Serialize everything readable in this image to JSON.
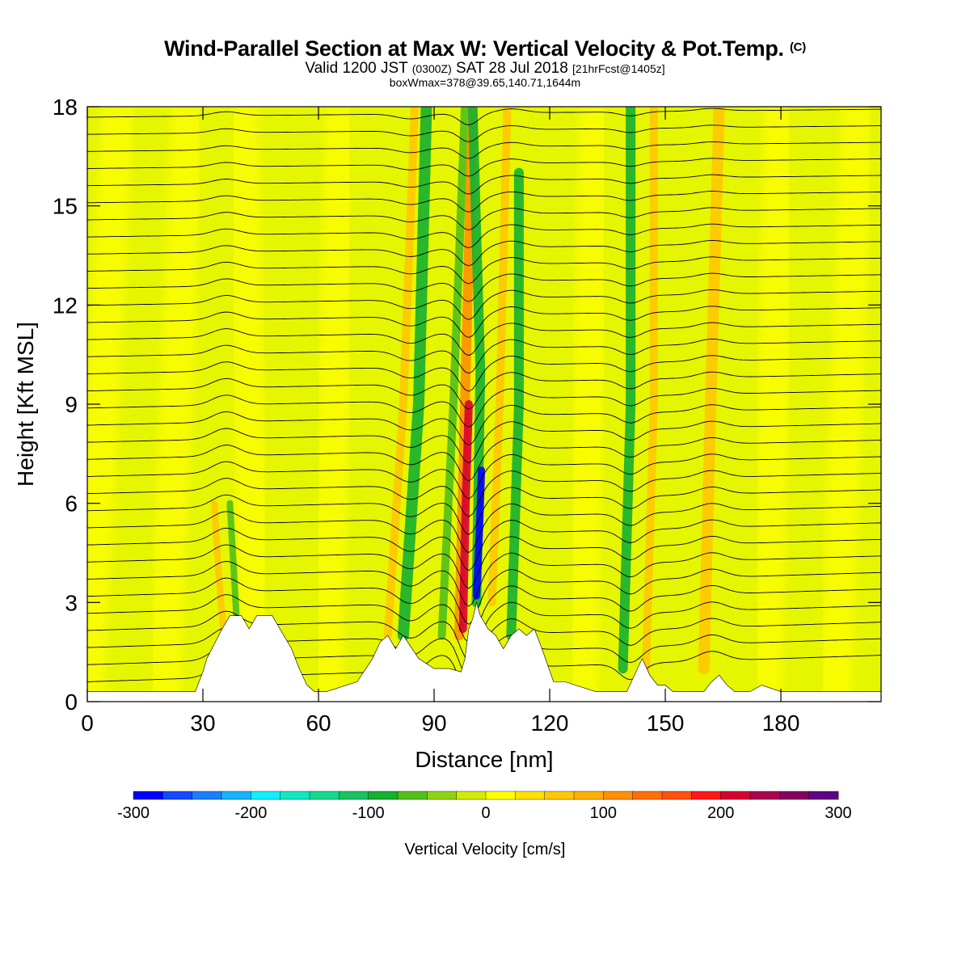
{
  "header": {
    "title": "Wind-Parallel Section at Max W: Vertical Velocity & Pot.Temp.",
    "copyright": "(C)",
    "subtitle_main": "Valid 1200 JST",
    "subtitle_utc": "(0300Z)",
    "subtitle_date": "SAT 28 Jul 2018",
    "subtitle_fcst": "[21hrFcst@1405z]",
    "box_line": "boxWmax=378@39.65,140.71,1644m"
  },
  "chart_data": {
    "type": "heatmap",
    "xlabel": "Distance [nm]",
    "ylabel": "Height [Kft MSL]",
    "xlim": [
      0,
      206
    ],
    "ylim": [
      0,
      18
    ],
    "x_ticks": [
      "0",
      "30",
      "60",
      "90",
      "120",
      "150",
      "180"
    ],
    "y_ticks": [
      "0",
      "3",
      "6",
      "9",
      "12",
      "15",
      "18"
    ],
    "colorbar": {
      "label": "Vertical Velocity [cm/s]",
      "range": [
        -300,
        300
      ],
      "tick_labels": [
        "-300",
        "-200",
        "-100",
        "0",
        "100",
        "200",
        "300"
      ],
      "colors": [
        "#0000ff",
        "#1448ff",
        "#1a7eff",
        "#14b4ff",
        "#10f0ff",
        "#10e8c0",
        "#14d890",
        "#18c460",
        "#14b030",
        "#50c018",
        "#8ed510",
        "#d2ec00",
        "#ffff00",
        "#ffe000",
        "#ffc800",
        "#ffb000",
        "#ff9000",
        "#ff7000",
        "#ff5010",
        "#ff1818",
        "#d80030",
        "#b00050",
        "#880060",
        "#600088"
      ]
    },
    "terrain_kft": [
      [
        0,
        0.3
      ],
      [
        28,
        0.3
      ],
      [
        29,
        0.6
      ],
      [
        30,
        0.9
      ],
      [
        31,
        1.3
      ],
      [
        35,
        2.2
      ],
      [
        37,
        2.6
      ],
      [
        40,
        2.6
      ],
      [
        42,
        2.2
      ],
      [
        44,
        2.6
      ],
      [
        48,
        2.6
      ],
      [
        50,
        2.2
      ],
      [
        53,
        1.6
      ],
      [
        55,
        1.0
      ],
      [
        57,
        0.5
      ],
      [
        59,
        0.3
      ],
      [
        62,
        0.3
      ],
      [
        70,
        0.6
      ],
      [
        74,
        1.3
      ],
      [
        76,
        1.8
      ],
      [
        78,
        2.0
      ],
      [
        80,
        1.6
      ],
      [
        82,
        2.0
      ],
      [
        86,
        1.3
      ],
      [
        90,
        1.0
      ],
      [
        94,
        1.0
      ],
      [
        97,
        0.9
      ],
      [
        98,
        1.3
      ],
      [
        99,
        2.2
      ],
      [
        100,
        2.5
      ],
      [
        101,
        3.0
      ],
      [
        102,
        2.6
      ],
      [
        104,
        2.2
      ],
      [
        106,
        2.0
      ],
      [
        108,
        1.6
      ],
      [
        110,
        2.0
      ],
      [
        112,
        2.2
      ],
      [
        114,
        2.0
      ],
      [
        116,
        2.2
      ],
      [
        118,
        1.6
      ],
      [
        121,
        0.6
      ],
      [
        124,
        0.6
      ],
      [
        132,
        0.3
      ],
      [
        140,
        0.3
      ],
      [
        142,
        0.8
      ],
      [
        144,
        1.3
      ],
      [
        146,
        0.8
      ],
      [
        148,
        0.5
      ],
      [
        150,
        0.5
      ],
      [
        152,
        0.3
      ],
      [
        160,
        0.3
      ],
      [
        162,
        0.6
      ],
      [
        164,
        0.8
      ],
      [
        166,
        0.5
      ],
      [
        168,
        0.3
      ],
      [
        172,
        0.3
      ],
      [
        175,
        0.5
      ],
      [
        180,
        0.3
      ],
      [
        206,
        0.3
      ]
    ],
    "w_features": [
      {
        "x": 97.5,
        "y": 5.5,
        "w_cms": 200
      },
      {
        "x": 101.5,
        "y": 5.0,
        "w_cms": -300
      },
      {
        "x": 80,
        "y": 10,
        "w_cms": 60
      },
      {
        "x": 84,
        "y": 12,
        "w_cms": -100
      },
      {
        "x": 108,
        "y": 9,
        "w_cms": -80
      },
      {
        "x": 141,
        "y": 10,
        "w_cms": -80
      },
      {
        "x": 145,
        "y": 9,
        "w_cms": 40
      },
      {
        "x": 163,
        "y": 10,
        "w_cms": 60
      },
      {
        "x": 35,
        "y": 4,
        "w_cms": 60
      },
      {
        "x": 38,
        "y": 5,
        "w_cms": -60
      }
    ],
    "theta_line_count": 34
  }
}
